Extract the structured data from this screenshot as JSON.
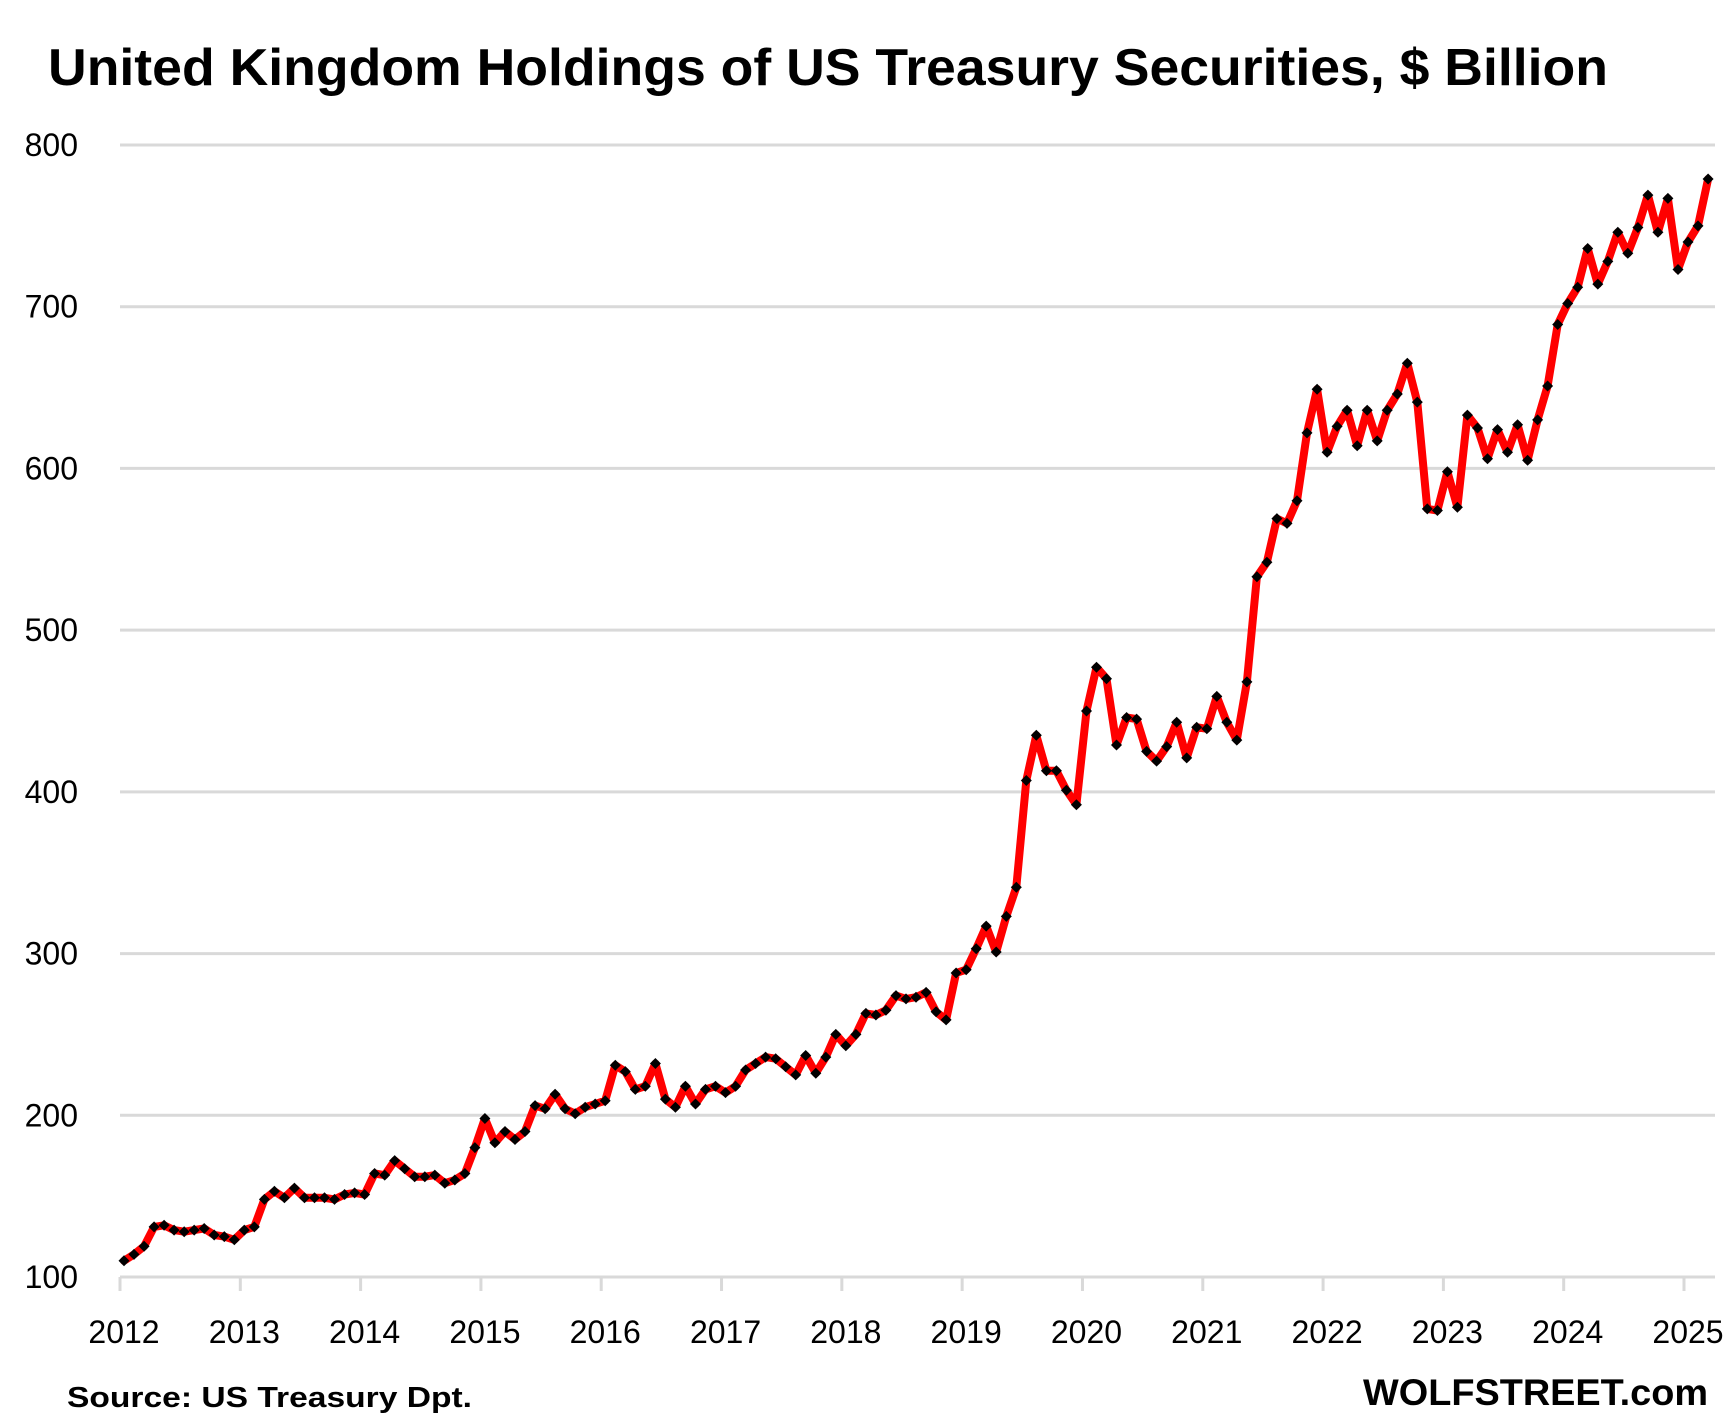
{
  "chart_data": {
    "type": "line",
    "title": "United Kingdom Holdings of US Treasury Securities, $ Billion",
    "xlabel": "",
    "ylabel": "",
    "ylim": [
      100,
      800
    ],
    "yticks": [
      "100",
      "200",
      "300",
      "400",
      "500",
      "600",
      "700",
      "800"
    ],
    "ytick_values": [
      100,
      200,
      300,
      400,
      500,
      600,
      700,
      800
    ],
    "xticks": [
      "2012",
      "2013",
      "2014",
      "2015",
      "2016",
      "2017",
      "2018",
      "2019",
      "2020",
      "2021",
      "2022",
      "2023",
      "2024",
      "2025"
    ],
    "x_start": "2012-01",
    "x_frequency": "monthly",
    "grid": true,
    "legend": "none",
    "series": [
      {
        "name": "United Kingdom Holdings",
        "color": "#ff0000",
        "marker_color": "#000000",
        "marker": "diamond",
        "values": [
          110,
          114,
          119,
          131,
          132,
          129,
          128,
          129,
          130,
          126,
          125,
          123,
          129,
          131,
          148,
          153,
          149,
          155,
          149,
          149,
          149,
          148,
          151,
          152,
          151,
          164,
          163,
          172,
          167,
          162,
          162,
          163,
          158,
          160,
          164,
          180,
          198,
          183,
          190,
          185,
          190,
          206,
          204,
          213,
          204,
          201,
          205,
          207,
          209,
          231,
          227,
          216,
          218,
          232,
          210,
          205,
          218,
          207,
          216,
          218,
          214,
          218,
          228,
          232,
          236,
          235,
          230,
          225,
          237,
          226,
          236,
          250,
          243,
          250,
          263,
          262,
          265,
          274,
          272,
          273,
          276,
          264,
          259,
          288,
          290,
          303,
          317,
          301,
          323,
          341,
          407,
          435,
          413,
          413,
          401,
          392,
          450,
          477,
          470,
          429,
          446,
          445,
          425,
          419,
          428,
          443,
          421,
          440,
          439,
          459,
          443,
          432,
          468,
          533,
          542,
          569,
          566,
          580,
          622,
          649,
          610,
          626,
          636,
          614,
          636,
          617,
          636,
          646,
          665,
          641,
          575,
          574,
          598,
          576,
          633,
          625,
          606,
          624,
          610,
          627,
          605,
          630,
          651,
          689,
          702,
          712,
          736,
          714,
          728,
          746,
          733,
          749,
          769,
          746,
          767,
          723,
          740,
          750,
          779
        ]
      }
    ]
  },
  "footer": {
    "source": "Source: US Treasury  Dpt.",
    "brand": "WOLFSTREET.com"
  }
}
